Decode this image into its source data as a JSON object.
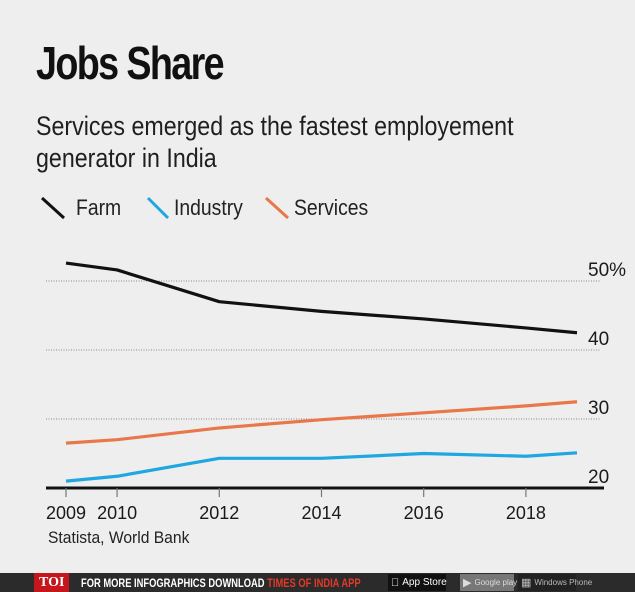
{
  "header": {
    "title": "Jobs Share",
    "subtitle": "Services emerged as the fastest employement generator in India"
  },
  "legend": [
    {
      "label": "Farm",
      "color": "#111111"
    },
    {
      "label": "Industry",
      "color": "#1ea7e1"
    },
    {
      "label": "Services",
      "color": "#e8784a"
    }
  ],
  "source": "Statista, World Bank",
  "banner": {
    "logo": "TOI",
    "text_prefix": "FOR MORE  INFOGRAPHICS DOWNLOAD ",
    "text_highlight": "TIMES OF INDIA  APP",
    "app_store": "App Store",
    "app_store_small": "Available on the",
    "google_play": "Google play",
    "windows": "Windows Phone"
  },
  "chart_data": {
    "type": "line",
    "title": "Jobs Share",
    "subtitle": "Services emerged as the fastest employement generator in India",
    "xlabel": "",
    "ylabel": "",
    "x": [
      2009,
      2010,
      2012,
      2014,
      2016,
      2018,
      2019
    ],
    "x_ticks": [
      2009,
      2010,
      2012,
      2014,
      2016,
      2018
    ],
    "x_tick_labels": [
      "2009",
      "2010",
      "2012",
      "2014",
      "2016",
      "2018"
    ],
    "xlim": [
      2009,
      2019
    ],
    "ylim": [
      20,
      50
    ],
    "y_ticks": [
      20,
      30,
      40,
      50
    ],
    "y_tick_labels": [
      "20",
      "30",
      "40",
      "50%"
    ],
    "grid": true,
    "legend_position": "top-left",
    "series": [
      {
        "name": "Farm",
        "color": "#111111",
        "values": [
          52.6,
          51.6,
          47.0,
          45.6,
          44.5,
          43.2,
          42.5
        ]
      },
      {
        "name": "Industry",
        "color": "#1ea7e1",
        "values": [
          21.0,
          21.7,
          24.3,
          24.3,
          25.0,
          24.6,
          25.1
        ]
      },
      {
        "name": "Services",
        "color": "#e8784a",
        "values": [
          26.5,
          27.0,
          28.7,
          29.9,
          30.9,
          31.9,
          32.5
        ]
      }
    ],
    "source": "Statista, World Bank"
  }
}
